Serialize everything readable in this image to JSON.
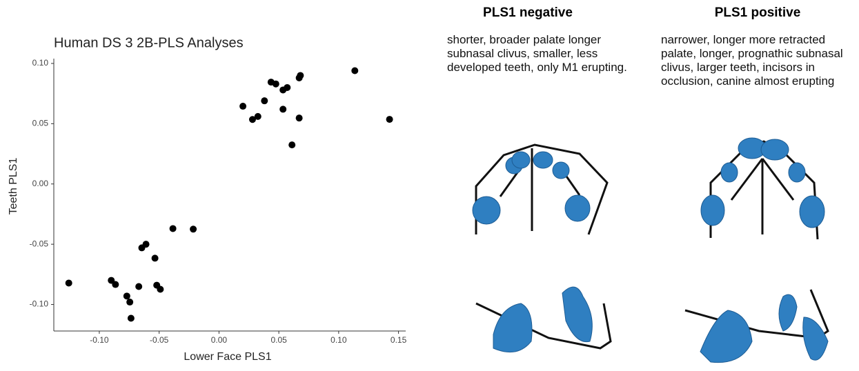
{
  "chart_data": {
    "type": "scatter",
    "title": "Human DS 3 2B-PLS Analyses",
    "x_label": "Lower Face PLS1",
    "y_label": "Teeth PLS1",
    "color": "#000000",
    "x": [
      0.1135,
      0.1425,
      0.068,
      0.067,
      0.0435,
      0.0475,
      0.057,
      0.0535,
      0.038,
      0.02,
      0.0325,
      0.028,
      0.0535,
      0.067,
      0.061,
      -0.0385,
      -0.0215,
      -0.061,
      -0.0645,
      -0.0535,
      -0.09,
      -0.0865,
      -0.1255,
      -0.067,
      -0.052,
      -0.049,
      -0.077,
      -0.0745,
      -0.0735
    ],
    "values": [
      0.094,
      0.0536,
      0.09,
      0.088,
      0.0845,
      0.083,
      0.08,
      0.078,
      0.069,
      0.0645,
      0.056,
      0.0535,
      0.062,
      0.0547,
      0.0324,
      -0.037,
      -0.0375,
      -0.05,
      -0.053,
      -0.0616,
      -0.08,
      -0.0834,
      -0.0822,
      -0.0851,
      -0.084,
      -0.0874,
      -0.093,
      -0.098,
      -0.1114
    ],
    "xlim": [
      -0.138,
      0.156
    ],
    "ylim": [
      -0.122,
      0.104
    ],
    "xticks": [
      {
        "value": -0.1,
        "label": "-0.10"
      },
      -0.05,
      {
        "value": 0,
        "label": "0.00"
      },
      0.05,
      {
        "value": 0.1,
        "label": "0.10"
      },
      0.15
    ],
    "yticks": [
      {
        "value": -0.1,
        "label": "-0.10"
      },
      -0.05,
      {
        "value": 0,
        "label": "0.00"
      },
      0.05,
      {
        "value": 0.1,
        "label": "0.10"
      }
    ]
  },
  "panels": [
    {
      "title": "PLS1 negative",
      "description": "shorter, broader palate longer subnasal clivus, smaller, less developed teeth, only M1 erupting."
    },
    {
      "title": "PLS1 positive",
      "description": "narrower, longer more retracted palate, longer, prognathic subnasal clivus, larger teeth, incisors in occlusion, canine almost erupting"
    }
  ]
}
